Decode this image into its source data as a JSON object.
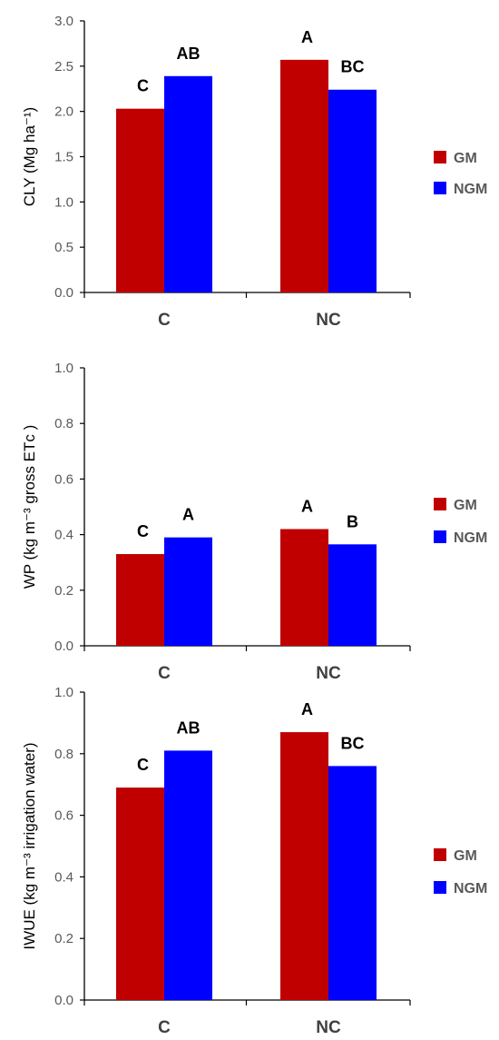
{
  "chart_data": [
    {
      "type": "bar",
      "title": "",
      "ylabel": "CLY (Mg ha⁻¹)",
      "xlabel": "",
      "categories": [
        "C",
        "NC"
      ],
      "series": [
        {
          "name": "GM",
          "values": [
            2.03,
            2.57
          ],
          "color": "#C00000"
        },
        {
          "name": "NGM",
          "values": [
            2.39,
            2.24
          ],
          "color": "#0000FF"
        }
      ],
      "significance": [
        [
          "C",
          "AB"
        ],
        [
          "A",
          "BC"
        ]
      ],
      "ylim": [
        0,
        3.0
      ],
      "yticks": [
        "0.0",
        "0.5",
        "1.0",
        "1.5",
        "2.0",
        "2.5",
        "3.0"
      ],
      "grid": false,
      "legend_position": "right"
    },
    {
      "type": "bar",
      "title": "",
      "ylabel": "WP (kg m⁻³ gross ETᴄ )",
      "xlabel": "",
      "categories": [
        "C",
        "NC"
      ],
      "series": [
        {
          "name": "GM",
          "values": [
            0.33,
            0.42
          ],
          "color": "#C00000"
        },
        {
          "name": "NGM",
          "values": [
            0.39,
            0.365
          ],
          "color": "#0000FF"
        }
      ],
      "significance": [
        [
          "C",
          "A"
        ],
        [
          "A",
          "B"
        ]
      ],
      "ylim": [
        0,
        1.0
      ],
      "yticks": [
        "0.0",
        "0.2",
        "0.4",
        "0.6",
        "0.8",
        "1.0"
      ],
      "grid": false,
      "legend_position": "right"
    },
    {
      "type": "bar",
      "title": "",
      "ylabel": "IWUE (kg m⁻³ irrigation water)",
      "xlabel": "",
      "categories": [
        "C",
        "NC"
      ],
      "series": [
        {
          "name": "GM",
          "values": [
            0.69,
            0.87
          ],
          "color": "#C00000"
        },
        {
          "name": "NGM",
          "values": [
            0.81,
            0.76
          ],
          "color": "#0000FF"
        }
      ],
      "significance": [
        [
          "C",
          "AB"
        ],
        [
          "A",
          "BC"
        ]
      ],
      "ylim": [
        0,
        1.0
      ],
      "yticks": [
        "0.0",
        "0.2",
        "0.4",
        "0.6",
        "0.8",
        "1.0"
      ],
      "grid": false,
      "legend_position": "right"
    }
  ]
}
